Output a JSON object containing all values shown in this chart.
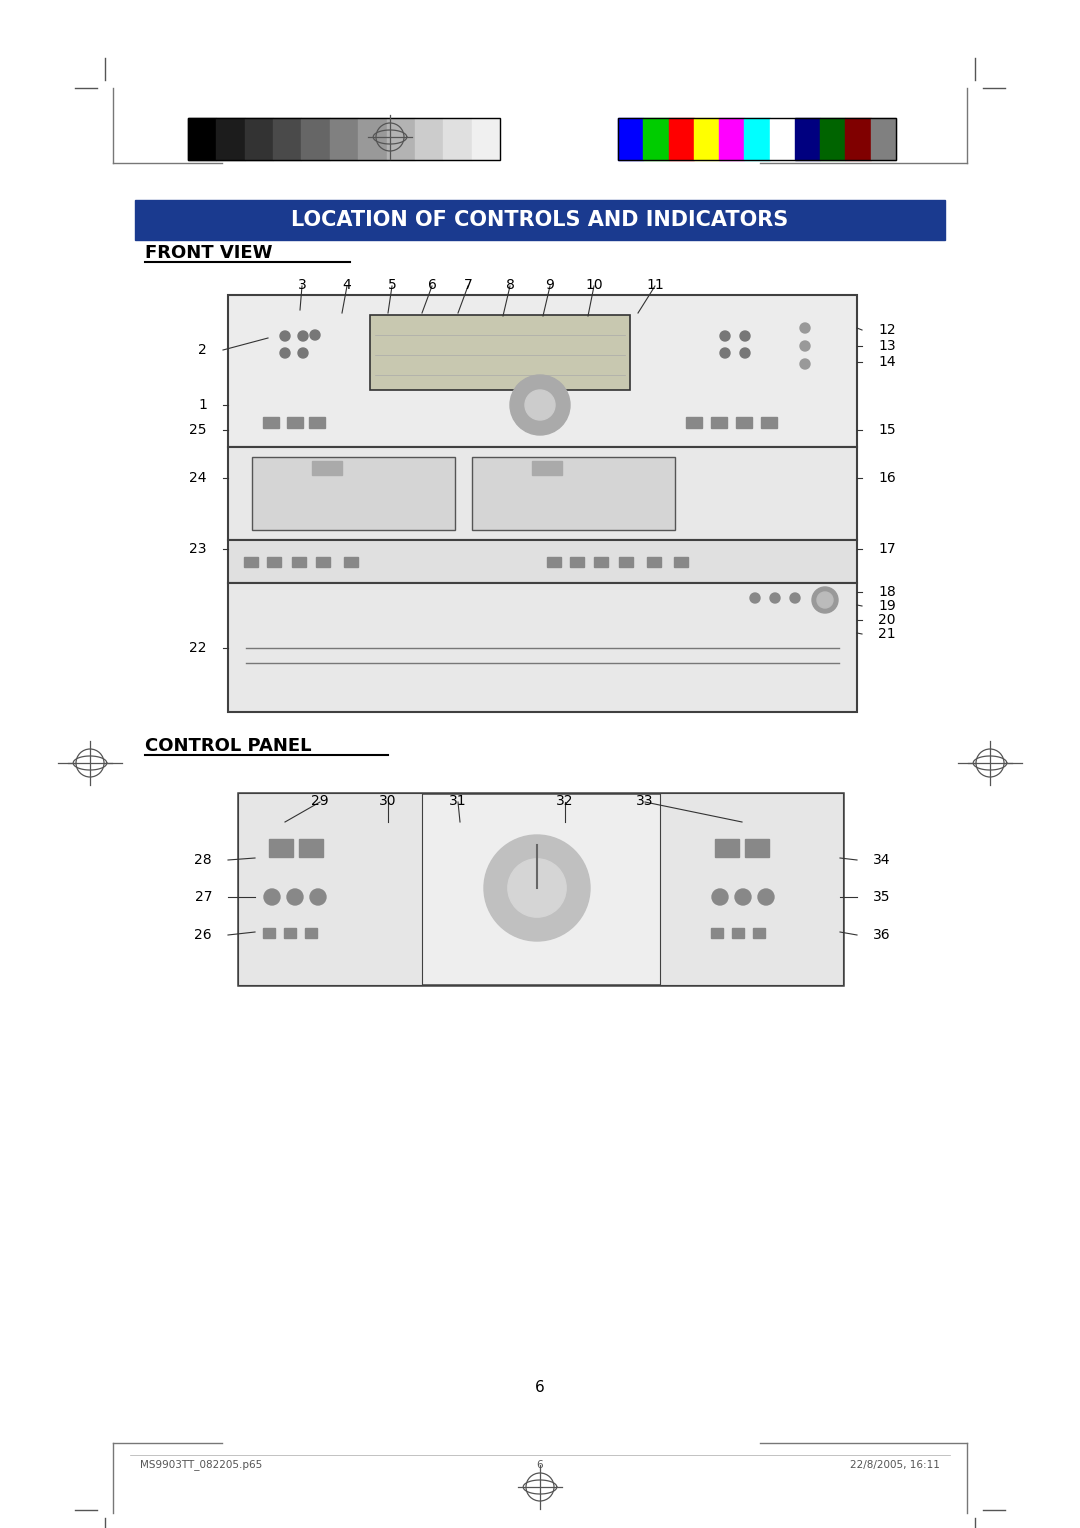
{
  "page_bg": "#ffffff",
  "title_text": "LOCATION OF CONTROLS AND INDICATORS",
  "title_bg": "#1a3a8f",
  "title_fg": "#ffffff",
  "section1_title": "FRONT VIEW",
  "section2_title": "CONTROL PANEL",
  "page_number": "6",
  "footer_left": "MS9903TT_082205.p65",
  "footer_center": "6",
  "footer_right": "22/8/2005, 16:11",
  "grayscale_colors": [
    "#000000",
    "#1c1c1c",
    "#333333",
    "#4a4a4a",
    "#666666",
    "#808080",
    "#999999",
    "#b3b3b3",
    "#cccccc",
    "#e0e0e0",
    "#f0f0f0"
  ],
  "color_bar_colors": [
    "#0000ff",
    "#00cc00",
    "#ff0000",
    "#ffff00",
    "#ff00ff",
    "#00ffff",
    "#ffffff",
    "#000080",
    "#006400",
    "#800000",
    "#808080"
  ],
  "diagram_edge": "#404040",
  "diagram_fill": "#f0f0f0",
  "label_fs": 10,
  "title_fs": 15,
  "section_fs": 13
}
